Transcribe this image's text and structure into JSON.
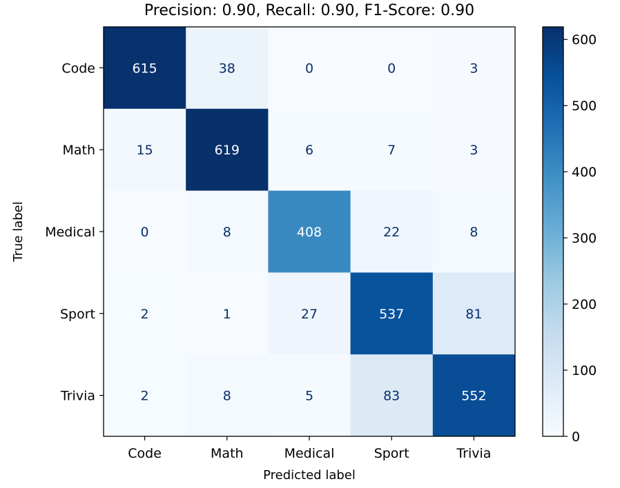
{
  "chart_data": {
    "type": "heatmap",
    "title": "Precision: 0.90, Recall: 0.90, F1-Score: 0.90",
    "xlabel": "Predicted label",
    "ylabel": "True label",
    "x_categories": [
      "Code",
      "Math",
      "Medical",
      "Sport",
      "Trivia"
    ],
    "y_categories": [
      "Code",
      "Math",
      "Medical",
      "Sport",
      "Trivia"
    ],
    "values": [
      [
        615,
        38,
        0,
        0,
        3
      ],
      [
        15,
        619,
        6,
        7,
        3
      ],
      [
        0,
        8,
        408,
        22,
        8
      ],
      [
        2,
        1,
        27,
        537,
        81
      ],
      [
        2,
        8,
        5,
        83,
        552
      ]
    ],
    "colormap": "Blues",
    "colorbar": {
      "range": [
        0,
        619
      ],
      "ticks": [
        0,
        100,
        200,
        300,
        400,
        500,
        600
      ]
    },
    "grid": false,
    "legend": "colorbar-right"
  }
}
